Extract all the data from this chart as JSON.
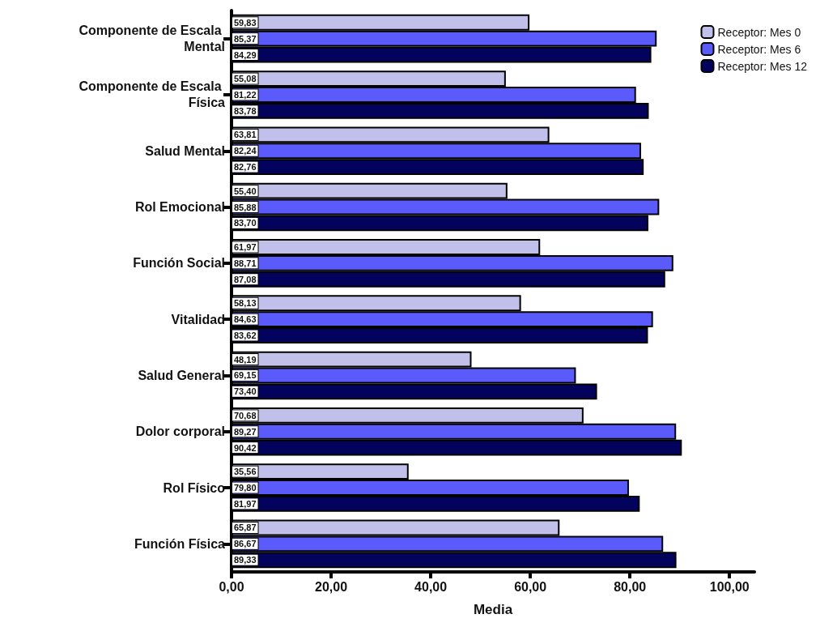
{
  "chart_data": {
    "type": "bar",
    "orientation": "horizontal",
    "xlabel": "Media",
    "categories": [
      "Componente de Escala Mental",
      "Componente de Escala Física",
      "Salud Mental",
      "Rol Emocional",
      "Función Social",
      "Vitalidad",
      "Salud General",
      "Dolor corporal",
      "Rol Físico",
      "Función Física"
    ],
    "series": [
      {
        "name": "Receptor: Mes 0",
        "color": "#c0c0ea",
        "values": [
          59.83,
          55.08,
          63.81,
          55.4,
          61.97,
          58.13,
          48.19,
          70.68,
          35.56,
          65.87
        ],
        "value_labels": [
          "59,83",
          "55,08",
          "63,81",
          "55,40",
          "61,97",
          "58,13",
          "48,19",
          "70,68",
          "35,56",
          "65,87"
        ]
      },
      {
        "name": "Receptor: Mes 6",
        "color": "#5b5bfb",
        "values": [
          85.37,
          81.22,
          82.24,
          85.88,
          88.71,
          84.63,
          69.15,
          89.27,
          79.8,
          86.67
        ],
        "value_labels": [
          "85,37",
          "81,22",
          "82,24",
          "85,88",
          "88,71",
          "84,63",
          "69,15",
          "89,27",
          "79,80",
          "86,67"
        ]
      },
      {
        "name": "Receptor: Mes 12",
        "color": "#03035e",
        "values": [
          84.29,
          83.78,
          82.76,
          83.7,
          87.08,
          83.62,
          73.4,
          90.42,
          81.97,
          89.33
        ],
        "value_labels": [
          "84,29",
          "83,78",
          "82,76",
          "83,70",
          "87,08",
          "83,62",
          "73,40",
          "90,42",
          "81,97",
          "89,33"
        ]
      }
    ],
    "xlim": [
      0,
      105
    ],
    "xticks": [
      {
        "value": 0,
        "label": "0,00"
      },
      {
        "value": 20,
        "label": "20,00"
      },
      {
        "value": 40,
        "label": "40,00"
      },
      {
        "value": 60,
        "label": "60,00"
      },
      {
        "value": 80,
        "label": "80,00"
      },
      {
        "value": 100,
        "label": "100,00"
      }
    ],
    "grid": false,
    "legend": "top right"
  }
}
